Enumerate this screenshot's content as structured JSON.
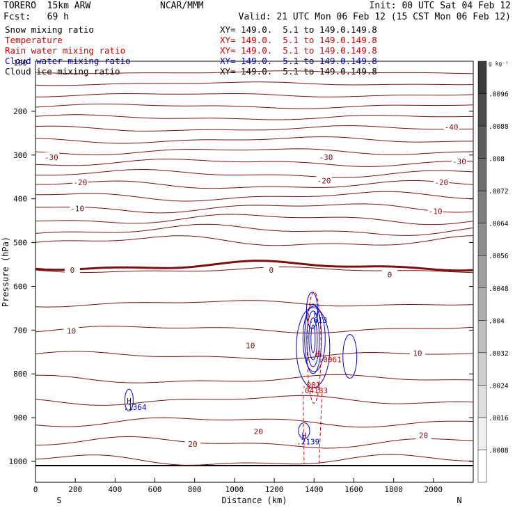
{
  "header": {
    "model": "TORERO  15km ARW",
    "center": "NCAR/MMM",
    "init": "Init: 00 UTC Sat 04 Feb 12",
    "fcst": "Fcst:   69 h",
    "valid": "Valid: 21 UTC Mon 06 Feb 12 (15 CST Mon 06 Feb 12)"
  },
  "fields": [
    {
      "name": "Snow mixing ratio",
      "xy": "XY= 149.0.  5.1 to 149.0.149.8",
      "color": "#000000"
    },
    {
      "name": "Temperature",
      "xy": "XY= 149.0.  5.1 to 149.0.149.8",
      "color": "#cc0000"
    },
    {
      "name": "Rain water mixing ratio",
      "xy": "XY= 149.0.  5.1 to 149.0.149.8",
      "color": "#cc0000"
    },
    {
      "name": "Cloud water mixing ratio",
      "xy": "XY= 149.0.  5.1 to 149.0.149.8",
      "color": "#0000cc"
    },
    {
      "name": "Cloud ice mixing ratio",
      "xy": "XY= 149.0.  5.1 to 149.0.149.8",
      "color": "#000000"
    }
  ],
  "top_label": "100",
  "chart_data": {
    "type": "contour",
    "xlabel": "Distance (km)",
    "ylabel": "Pressure (hPa)",
    "xlim": [
      0,
      2200
    ],
    "ylim": [
      1050,
      100
    ],
    "x_ticks": [
      0,
      200,
      400,
      600,
      800,
      1000,
      1200,
      1400,
      1600,
      1800,
      2000
    ],
    "y_ticks": [
      200,
      300,
      400,
      500,
      600,
      700,
      800,
      900,
      1000
    ],
    "endpoints": {
      "left": "S",
      "right": "N"
    },
    "colorbar": {
      "unit": "g kg⁻¹",
      "ticks": [
        ".0096",
        ".0088",
        ".008",
        ".0072",
        ".0064",
        ".0056",
        ".0048",
        ".004",
        ".0032",
        ".0024",
        ".0016",
        ".0008"
      ]
    },
    "temperature_labels": [
      {
        "x": 80,
        "p": 305,
        "text": "-30"
      },
      {
        "x": 1460,
        "p": 305,
        "text": "-30"
      },
      {
        "x": 2130,
        "p": 315,
        "text": "-30"
      },
      {
        "x": 2090,
        "p": 236,
        "text": "-40"
      },
      {
        "x": 225,
        "p": 362,
        "text": "-20"
      },
      {
        "x": 1450,
        "p": 358,
        "text": "-20"
      },
      {
        "x": 2040,
        "p": 362,
        "text": "-20"
      },
      {
        "x": 210,
        "p": 422,
        "text": "-10"
      },
      {
        "x": 2010,
        "p": 428,
        "text": "-10"
      },
      {
        "x": 185,
        "p": 563,
        "text": "0"
      },
      {
        "x": 1185,
        "p": 563,
        "text": "0"
      },
      {
        "x": 1780,
        "p": 573,
        "text": "0"
      },
      {
        "x": 180,
        "p": 702,
        "text": "10"
      },
      {
        "x": 1080,
        "p": 735,
        "text": "10"
      },
      {
        "x": 1920,
        "p": 753,
        "text": "10"
      },
      {
        "x": 790,
        "p": 960,
        "text": "20"
      },
      {
        "x": 1120,
        "p": 932,
        "text": "20"
      },
      {
        "x": 1950,
        "p": 940,
        "text": "20"
      }
    ],
    "extrema_labels": [
      {
        "x": 470,
        "p": 862,
        "text": "H",
        "color": "#0000cc"
      },
      {
        "x": 500,
        "p": 876,
        "text": ".1364",
        "color": "#0000cc"
      },
      {
        "x": 1350,
        "p": 940,
        "text": "H",
        "color": "#0000cc"
      },
      {
        "x": 1370,
        "p": 955,
        "text": ".2139",
        "color": "#0000cc"
      },
      {
        "x": 1410,
        "p": 663,
        "text": "H",
        "color": "#0000cc"
      },
      {
        "x": 1420,
        "p": 677,
        "text": ".613",
        "color": "#0000cc"
      },
      {
        "x": 1420,
        "p": 753,
        "text": "H",
        "color": "#cc0000"
      },
      {
        "x": 1480,
        "p": 767,
        "text": ".0061",
        "color": "#cc0000"
      },
      {
        "x": 1385,
        "p": 825,
        "text": ".001",
        "color": "#cc0000"
      },
      {
        "x": 1400,
        "p": 838,
        "text": ".04183",
        "color": "#cc0000"
      }
    ]
  }
}
